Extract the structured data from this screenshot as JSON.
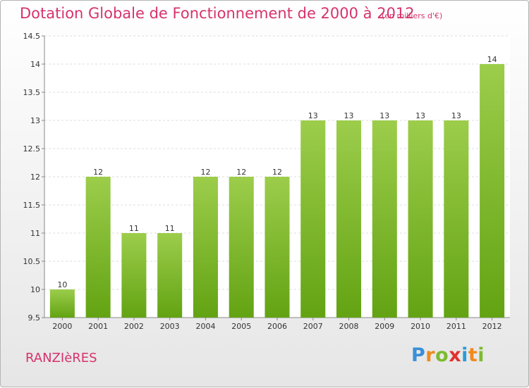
{
  "header": {
    "title": "Dotation Globale de Fonctionnement de 2000 à 2012",
    "subtitle": "(en milliers d'€)"
  },
  "footer": {
    "commune": "RANZIèRES",
    "logo": {
      "letters": [
        "P",
        "r",
        "o",
        "x",
        "i",
        "t",
        "i"
      ],
      "colors": [
        "#3a8fd8",
        "#f08a1c",
        "#7dbb2e",
        "#e2312d",
        "#2c9ad8",
        "#f08a1c",
        "#7dbb2e"
      ]
    }
  },
  "chart_data": {
    "type": "bar",
    "categories": [
      "2000",
      "2001",
      "2002",
      "2003",
      "2004",
      "2005",
      "2006",
      "2007",
      "2008",
      "2009",
      "2010",
      "2011",
      "2012"
    ],
    "values": [
      10,
      12,
      11,
      11,
      12,
      12,
      12,
      13,
      13,
      13,
      13,
      13,
      14
    ],
    "value_labels": [
      "10",
      "12",
      "11",
      "11",
      "12",
      "12",
      "12",
      "13",
      "13",
      "13",
      "13",
      "13",
      "14"
    ],
    "yticks": [
      "9.5",
      "10",
      "10.5",
      "11",
      "11.5",
      "12",
      "12.5",
      "13",
      "13.5",
      "14",
      "14.5"
    ],
    "ylim": [
      9.5,
      14.5
    ],
    "grid": true,
    "colors": {
      "bar_top": "#9ccd4b",
      "bar_bottom": "#63a313",
      "tick_text": "#333333"
    }
  }
}
